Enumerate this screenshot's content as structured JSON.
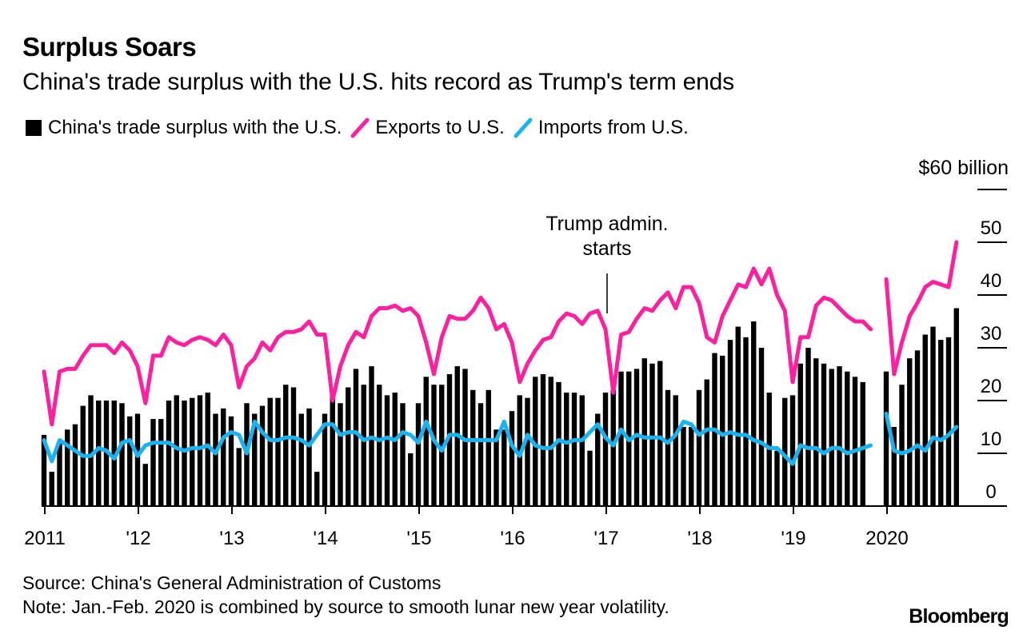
{
  "chart_data": {
    "type": "bar+line",
    "title": "Surplus Soars",
    "subtitle": "China's trade surplus with the U.S. hits record as Trump's term ends",
    "unit_label": "$60 billion",
    "ylim": [
      0,
      60
    ],
    "y_ticks": [
      {
        "value": 60,
        "label": ""
      },
      {
        "value": 50,
        "label": "50"
      },
      {
        "value": 40,
        "label": "40"
      },
      {
        "value": 30,
        "label": "30"
      },
      {
        "value": 20,
        "label": "20"
      },
      {
        "value": 10,
        "label": "10"
      },
      {
        "value": 0,
        "label": "0"
      }
    ],
    "x_ticks": [
      {
        "year": 2011,
        "label": "2011"
      },
      {
        "year": 2012,
        "label": "'12"
      },
      {
        "year": 2013,
        "label": "'13"
      },
      {
        "year": 2014,
        "label": "'14"
      },
      {
        "year": 2015,
        "label": "'15"
      },
      {
        "year": 2016,
        "label": "'16"
      },
      {
        "year": 2017,
        "label": "'17"
      },
      {
        "year": 2018,
        "label": "'18"
      },
      {
        "year": 2019,
        "label": "'19"
      },
      {
        "year": 2020,
        "label": "2020"
      }
    ],
    "legend": [
      {
        "name": "China's trade surplus with the U.S.",
        "color": "#000000",
        "kind": "bar"
      },
      {
        "name": "Exports to U.S.",
        "color": "#ff1f9f",
        "kind": "line"
      },
      {
        "name": "Imports from U.S.",
        "color": "#1ab3f2",
        "kind": "line"
      }
    ],
    "annotation": {
      "text_line1": "Trump admin.",
      "text_line2": "starts",
      "year": 2017
    },
    "start": "2011-01",
    "monthly": {
      "surplus": [
        13.5,
        6.5,
        12,
        14.5,
        15.5,
        19,
        21,
        20,
        20,
        20,
        19.5,
        17,
        17.5,
        8,
        16.5,
        16.5,
        20,
        21,
        20,
        20.5,
        21,
        21.5,
        17.5,
        18.5,
        17,
        11,
        19.5,
        17.5,
        19,
        20.5,
        20.5,
        23,
        22.5,
        17.5,
        18.5,
        6.5,
        17.5,
        21,
        19.5,
        22.5,
        26,
        23,
        26.5,
        23,
        21,
        21.5,
        19.5,
        10,
        19.5,
        24.5,
        23,
        23,
        25,
        26.5,
        26,
        22,
        19.5,
        22,
        14.5,
        14.5,
        18,
        21,
        20.5,
        24.5,
        25,
        24.5,
        23.5,
        21.5,
        21.5,
        21,
        10.5,
        17.5,
        21.5,
        22,
        25.5,
        25.5,
        26,
        28,
        27,
        27.5,
        22,
        21,
        15,
        15,
        22,
        24,
        29,
        28.5,
        31.5,
        34,
        32,
        35,
        30,
        21.5,
        10.5,
        20.5,
        21,
        27,
        30,
        28,
        27,
        26,
        26.5,
        25.5,
        24.5,
        23.5,
        null,
        null,
        25.5,
        15,
        23,
        28,
        29.5,
        32.5,
        34,
        31.5,
        32,
        37.5
      ],
      "exports": [
        25.5,
        15.5,
        25.5,
        26,
        26,
        28.5,
        30.5,
        30.5,
        30.5,
        29,
        31,
        29.5,
        26.5,
        19.5,
        28.5,
        28.5,
        32,
        31,
        30.5,
        31.5,
        32,
        31.5,
        30.5,
        32.5,
        30.5,
        22.5,
        26.5,
        28,
        31,
        29.5,
        32,
        33,
        33,
        33.5,
        35,
        32.5,
        32.5,
        20,
        26.5,
        30.5,
        33,
        32,
        36,
        37.5,
        37.5,
        38,
        37,
        37.5,
        36,
        31,
        25,
        32,
        36,
        35.5,
        35.5,
        37,
        39.5,
        37.5,
        33.5,
        34.5,
        31,
        23.5,
        27,
        29.5,
        31.5,
        32,
        35,
        36.5,
        36,
        34.5,
        36.5,
        37,
        33.5,
        21.5,
        32.5,
        33,
        35.5,
        37.5,
        37,
        39,
        40.5,
        37.5,
        41.5,
        41.5,
        38.5,
        32,
        31,
        36,
        39,
        42,
        41.5,
        45,
        42,
        45,
        40,
        37,
        23.5,
        32,
        32,
        38,
        39.5,
        39,
        37.5,
        36,
        35,
        35,
        33.5,
        null,
        43,
        25,
        31,
        36,
        38.5,
        41.5,
        42.5,
        42,
        41.5,
        50
      ],
      "imports": [
        12.5,
        8.5,
        12.5,
        11.5,
        10.5,
        9.5,
        9.5,
        11,
        10.5,
        9,
        12,
        12.5,
        9.5,
        11.5,
        12,
        12,
        12,
        11,
        10.5,
        11,
        11,
        11.5,
        10,
        13,
        14,
        13.5,
        10,
        16,
        14,
        12.5,
        12.5,
        13,
        13,
        12.5,
        11.5,
        13.5,
        15.5,
        15.5,
        13.5,
        14,
        14,
        12.5,
        13,
        12.5,
        13,
        12.5,
        14,
        13.5,
        12,
        16,
        12.5,
        10.5,
        13.5,
        13.5,
        12.5,
        12.5,
        12.5,
        12.5,
        12.5,
        16,
        11.5,
        9.5,
        13.5,
        11.5,
        11,
        11,
        12.5,
        12,
        12.5,
        12.5,
        14,
        15.5,
        13,
        11.5,
        14.5,
        12.5,
        13.5,
        13,
        13,
        13,
        12,
        13.5,
        16,
        15.5,
        13.5,
        14.5,
        14.5,
        13.5,
        14,
        13.5,
        13.5,
        12.5,
        12,
        11,
        11,
        9.5,
        8,
        11.5,
        11,
        11,
        10,
        11,
        11,
        10,
        10.5,
        11,
        11.5,
        null,
        17.5,
        10.5,
        10,
        10.5,
        11.5,
        10.5,
        13,
        12.5,
        13.5,
        15
      ]
    }
  },
  "footer": {
    "source": "Source: China's General Administration of Customs",
    "note": "Note: Jan.-Feb. 2020 is combined by source to smooth lunar new year volatility.",
    "brand": "Bloomberg"
  }
}
